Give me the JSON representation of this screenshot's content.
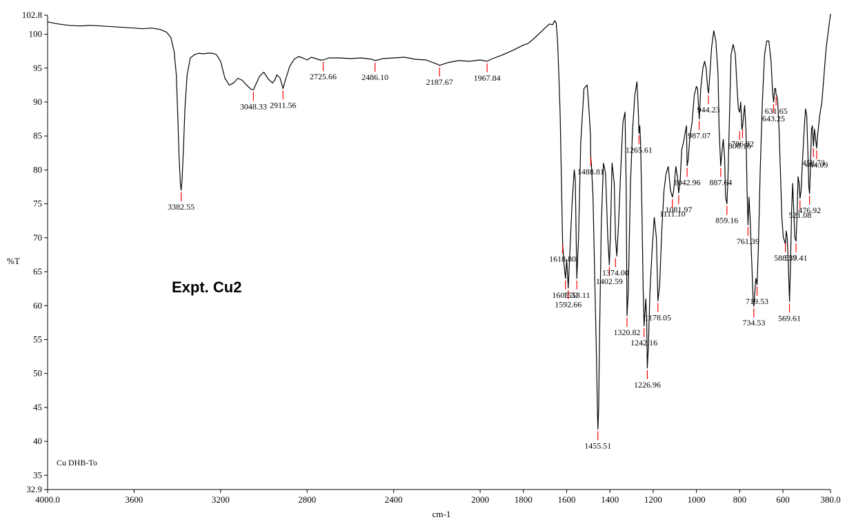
{
  "chart_data": {
    "type": "line",
    "title": "",
    "xlabel": "cm-1",
    "ylabel": "%T",
    "xlim": [
      4000.0,
      380.0
    ],
    "ylim": [
      32.9,
      102.8
    ],
    "x_reversed": true,
    "grid": false,
    "legend": "none",
    "x_ticks": [
      4000.0,
      3600,
      3200,
      2800,
      2400,
      2000,
      1800,
      1600,
      1400,
      1200,
      1000,
      800,
      600,
      380.0
    ],
    "x_tick_labels": [
      "4000.0",
      "3600",
      "3200",
      "2800",
      "2400",
      "2000",
      "1800",
      "1600",
      "1400",
      "1200",
      "1000",
      "800",
      "600",
      "380.0"
    ],
    "y_ticks": [
      32.9,
      35,
      40,
      45,
      50,
      55,
      60,
      65,
      70,
      75,
      80,
      85,
      90,
      95,
      100,
      102.8
    ],
    "y_tick_labels": [
      "32.9",
      "35",
      "40",
      "45",
      "50",
      "55",
      "60",
      "65",
      "70",
      "75",
      "80",
      "85",
      "90",
      "95",
      "100",
      "102.8"
    ],
    "annotations": [
      "Expt. Cu2",
      "Cu DHB-To"
    ],
    "series_color": "#000000",
    "marker_color": "#ff0000",
    "series": [
      {
        "x": [
          4000,
          3950,
          3900,
          3850,
          3800,
          3750,
          3700,
          3650,
          3600,
          3560,
          3520,
          3480,
          3450,
          3430,
          3415,
          3405,
          3398,
          3392,
          3386,
          3382.55,
          3378,
          3372,
          3365,
          3355,
          3340,
          3320,
          3300,
          3280,
          3260,
          3240,
          3220,
          3200,
          3180,
          3160,
          3140,
          3120,
          3100,
          3080,
          3060,
          3048.33,
          3040,
          3020,
          3000,
          2980,
          2960,
          2950,
          2940,
          2925,
          2911.56,
          2900,
          2880,
          2860,
          2840,
          2820,
          2800,
          2780,
          2760,
          2740,
          2725.66,
          2700,
          2650,
          2600,
          2550,
          2500,
          2486.1,
          2450,
          2400,
          2350,
          2300,
          2250,
          2200,
          2187.67,
          2150,
          2100,
          2050,
          2000,
          1967.84,
          1950,
          1900,
          1850,
          1800,
          1780,
          1760,
          1740,
          1720,
          1700,
          1680,
          1665,
          1655,
          1648,
          1642,
          1636,
          1630,
          1625,
          1618.8,
          1612,
          1605.31,
          1600,
          1592.66,
          1585,
          1575,
          1565,
          1560,
          1553.11,
          1545,
          1535,
          1520,
          1505,
          1495,
          1490,
          1488.81,
          1485,
          1478,
          1470,
          1462,
          1458,
          1455.51,
          1452,
          1448,
          1440,
          1430,
          1420,
          1410,
          1402.59,
          1398,
          1390,
          1380,
          1374,
          1368,
          1360,
          1350,
          1340,
          1330,
          1325,
          1320.82,
          1315,
          1305,
          1295,
          1285,
          1275,
          1268,
          1265.61,
          1262,
          1258,
          1252,
          1246,
          1242.16,
          1238,
          1234,
          1230,
          1226.96,
          1222,
          1215,
          1205,
          1195,
          1185,
          1178.05,
          1170,
          1160,
          1150,
          1140,
          1130,
          1120,
          1111.1,
          1105,
          1095,
          1088,
          1081.97,
          1075,
          1068,
          1060,
          1052,
          1046,
          1042.96,
          1038,
          1030,
          1020,
          1010,
          1000,
          995,
          987.07,
          980,
          970,
          962,
          955,
          948,
          944.23,
          940,
          930,
          920,
          910,
          900,
          895,
          887.64,
          882,
          876,
          870,
          865,
          859.16,
          855,
          850,
          840,
          830,
          820,
          812,
          806,
          800.16,
          795,
          790,
          786.82,
          782,
          777,
          771,
          766,
          761.39,
          757,
          752,
          745,
          738,
          734.53,
          730,
          725,
          719.53,
          714,
          705,
          695,
          685,
          675,
          665,
          655,
          648,
          643.25,
          638,
          634,
          631.65,
          628,
          624,
          618,
          612,
          605,
          598,
          592,
          588.57,
          585,
          580,
          575,
          569.61,
          565,
          560,
          555,
          550,
          545,
          539.41,
          535,
          530,
          525,
          521.08,
          516,
          510,
          505,
          500,
          495,
          490,
          485,
          480,
          476.92,
          473,
          468,
          464,
          458.73,
          454,
          449,
          444.09,
          440,
          430,
          420,
          410,
          400,
          390,
          380
        ],
        "y": [
          101.8,
          101.5,
          101.3,
          101.2,
          101.3,
          101.2,
          101.1,
          101.0,
          100.9,
          100.8,
          100.9,
          100.7,
          100.3,
          99.5,
          97.5,
          94,
          88,
          82,
          78,
          77.0,
          78.5,
          83,
          89,
          94,
          96.5,
          97,
          97.2,
          97.1,
          97.2,
          97.2,
          97,
          96,
          93.5,
          92.5,
          92.8,
          93.5,
          93.2,
          92.5,
          91.9,
          91.8,
          92.4,
          93.8,
          94.4,
          93.4,
          92.8,
          93.2,
          94,
          93.5,
          92.0,
          93.3,
          95.3,
          96.3,
          96.7,
          96.5,
          96.2,
          96.6,
          96.4,
          96.2,
          96.2,
          96.5,
          96.5,
          96.4,
          96.5,
          96.3,
          96.1,
          96.4,
          96.5,
          96.6,
          96.3,
          96.2,
          95.6,
          95.4,
          95.8,
          96.1,
          96.0,
          96.2,
          96.0,
          96.3,
          96.9,
          97.6,
          98.4,
          98.6,
          99.1,
          99.7,
          100.3,
          100.9,
          101.5,
          101.4,
          102.0,
          101.6,
          99,
          94,
          88,
          80,
          69.3,
          66,
          64.0,
          66.8,
          62.6,
          68,
          75,
          80,
          78.5,
          64.0,
          70,
          84,
          92,
          92.5,
          88,
          85,
          82.2,
          80.5,
          76,
          64,
          52,
          45,
          41.8,
          45,
          55,
          72,
          81,
          79.5,
          70,
          66.0,
          70,
          81,
          78,
          70,
          67.3,
          72,
          80,
          87,
          88.5,
          78,
          58.5,
          62,
          78,
          86,
          91,
          93,
          88,
          85.4,
          86.5,
          84,
          74,
          62,
          57.0,
          59,
          61,
          58,
          50.8,
          54,
          62,
          68,
          73,
          70,
          60.7,
          63,
          71,
          77,
          79.5,
          80.5,
          77,
          76.0,
          77,
          80.5,
          79,
          76.6,
          78.5,
          83,
          84,
          85.5,
          86.5,
          80.6,
          81.5,
          85,
          87,
          91,
          92.3,
          92,
          87.5,
          92,
          95,
          96,
          95,
          92,
          91.3,
          93,
          98,
          100.5,
          99,
          94,
          86,
          80.6,
          82.5,
          84.5,
          82,
          76,
          75.0,
          78,
          84,
          97,
          98.5,
          97,
          92,
          89,
          88.5,
          90,
          86,
          86.3,
          88,
          89.5,
          86,
          77,
          71.9,
          76,
          73,
          67,
          61,
          59.9,
          62,
          64,
          63.1,
          68,
          80,
          90,
          97,
          99,
          99,
          96,
          91.5,
          90,
          92,
          92,
          91.1,
          91,
          90,
          86,
          80,
          73,
          70,
          69.5,
          69,
          71,
          70,
          66,
          60.6,
          66,
          74,
          78,
          74,
          70,
          69.5,
          73,
          79,
          78,
          75.8,
          77,
          81,
          84,
          87,
          89,
          88,
          83,
          77.5,
          76.5,
          80,
          86,
          86.5,
          83.5,
          86,
          84.5,
          83.2,
          85,
          88,
          90,
          94,
          98,
          100.5,
          103
        ]
      }
    ],
    "peaks": [
      {
        "x": 3382.55,
        "y": 77.0,
        "label": "3382.55"
      },
      {
        "x": 3048.33,
        "y": 91.8,
        "label": "3048.33"
      },
      {
        "x": 2911.56,
        "y": 92.0,
        "label": "2911.56"
      },
      {
        "x": 2725.66,
        "y": 96.2,
        "label": "2725.66"
      },
      {
        "x": 2486.1,
        "y": 96.1,
        "label": "2486.10"
      },
      {
        "x": 2187.67,
        "y": 95.4,
        "label": "2187.67"
      },
      {
        "x": 1967.84,
        "y": 96.0,
        "label": "1967.84"
      },
      {
        "x": 1618.8,
        "y": 69.3,
        "label": "1618.80"
      },
      {
        "x": 1605.31,
        "y": 64.0,
        "label": "1605.31"
      },
      {
        "x": 1592.66,
        "y": 62.6,
        "label": "1592.66"
      },
      {
        "x": 1553.11,
        "y": 64.0,
        "label": "1553.11"
      },
      {
        "x": 1488.81,
        "y": 82.2,
        "label": "1488.81"
      },
      {
        "x": 1455.51,
        "y": 41.8,
        "label": "1455.51"
      },
      {
        "x": 1402.59,
        "y": 66.0,
        "label": "1402.59"
      },
      {
        "x": 1374.0,
        "y": 67.3,
        "label": "1374.00"
      },
      {
        "x": 1320.82,
        "y": 58.5,
        "label": "1320.82"
      },
      {
        "x": 1265.61,
        "y": 85.4,
        "label": "1265.61"
      },
      {
        "x": 1242.16,
        "y": 57.0,
        "label": "1242.16"
      },
      {
        "x": 1226.96,
        "y": 50.8,
        "label": "1226.96"
      },
      {
        "x": 1178.05,
        "y": 60.7,
        "label": "1178.05"
      },
      {
        "x": 1111.1,
        "y": 76.0,
        "label": "1111.10"
      },
      {
        "x": 1081.97,
        "y": 76.6,
        "label": "1081.97"
      },
      {
        "x": 1042.96,
        "y": 80.6,
        "label": "1042.96"
      },
      {
        "x": 987.07,
        "y": 87.5,
        "label": "987.07"
      },
      {
        "x": 944.23,
        "y": 91.3,
        "label": "944.23"
      },
      {
        "x": 887.64,
        "y": 80.6,
        "label": "887.64"
      },
      {
        "x": 859.16,
        "y": 75.0,
        "label": "859.16"
      },
      {
        "x": 800.16,
        "y": 86.0,
        "label": "800.16"
      },
      {
        "x": 786.82,
        "y": 86.3,
        "label": "786.82"
      },
      {
        "x": 761.39,
        "y": 71.9,
        "label": "761.39"
      },
      {
        "x": 734.53,
        "y": 59.9,
        "label": "734.53"
      },
      {
        "x": 719.53,
        "y": 63.1,
        "label": "719.53"
      },
      {
        "x": 643.25,
        "y": 90.0,
        "label": "643.25"
      },
      {
        "x": 631.65,
        "y": 91.1,
        "label": "631.65"
      },
      {
        "x": 588.57,
        "y": 69.5,
        "label": "588.57"
      },
      {
        "x": 569.61,
        "y": 60.6,
        "label": "569.61"
      },
      {
        "x": 539.41,
        "y": 69.5,
        "label": "539.41"
      },
      {
        "x": 521.08,
        "y": 75.8,
        "label": "521.08"
      },
      {
        "x": 476.92,
        "y": 76.5,
        "label": "476.92"
      },
      {
        "x": 458.73,
        "y": 83.5,
        "label": "458.73"
      },
      {
        "x": 444.09,
        "y": 83.2,
        "label": "444.09"
      }
    ]
  }
}
